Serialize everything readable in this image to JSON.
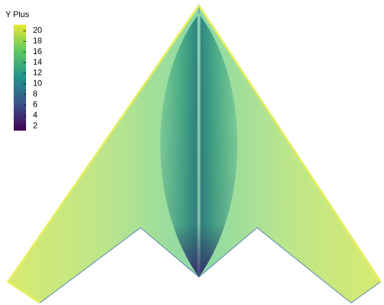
{
  "legend": {
    "title": "Y Plus",
    "ticks": [
      20,
      18,
      16,
      14,
      12,
      10,
      8,
      6,
      4,
      2
    ]
  }
}
